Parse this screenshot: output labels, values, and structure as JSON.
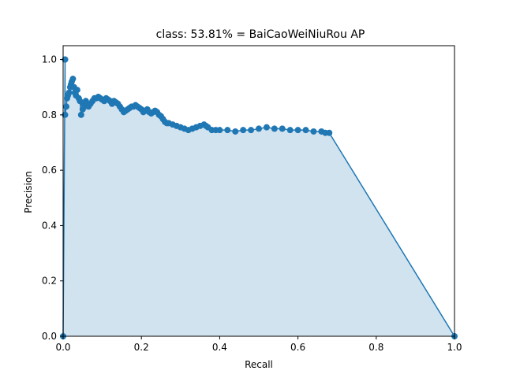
{
  "chart_data": {
    "type": "area",
    "title": "class: 53.81% = BaiCaoWeiNiuRou AP",
    "xlabel": "Recall",
    "ylabel": "Precision",
    "xlim": [
      0,
      1
    ],
    "ylim": [
      0,
      1.05
    ],
    "xticks": [
      "0.0",
      "0.2",
      "0.4",
      "0.6",
      "0.8",
      "1.0"
    ],
    "yticks": [
      "0.0",
      "0.2",
      "0.4",
      "0.6",
      "0.8",
      "1.0"
    ],
    "line_color": "#1f77b4",
    "fill_color": "#d2e3f0",
    "series": [
      {
        "x": [
          0.0,
          0.005,
          0.005,
          0.005,
          0.008,
          0.01,
          0.012,
          0.015,
          0.018,
          0.02,
          0.022,
          0.025,
          0.028,
          0.03,
          0.033,
          0.036,
          0.04,
          0.043,
          0.046,
          0.05,
          0.052,
          0.055,
          0.058,
          0.06,
          0.065,
          0.07,
          0.075,
          0.08,
          0.085,
          0.09,
          0.095,
          0.1,
          0.105,
          0.11,
          0.115,
          0.12,
          0.125,
          0.13,
          0.135,
          0.14,
          0.145,
          0.15,
          0.155,
          0.16,
          0.165,
          0.17,
          0.175,
          0.18,
          0.185,
          0.19,
          0.195,
          0.2,
          0.205,
          0.21,
          0.215,
          0.22,
          0.225,
          0.23,
          0.235,
          0.24,
          0.245,
          0.25,
          0.255,
          0.26,
          0.265,
          0.27,
          0.28,
          0.29,
          0.3,
          0.31,
          0.32,
          0.33,
          0.34,
          0.35,
          0.36,
          0.365,
          0.37,
          0.38,
          0.39,
          0.4,
          0.42,
          0.44,
          0.46,
          0.48,
          0.5,
          0.52,
          0.54,
          0.56,
          0.58,
          0.6,
          0.62,
          0.64,
          0.66,
          0.67,
          0.68,
          1.0
        ],
        "y": [
          0.0,
          1.0,
          1.0,
          0.8,
          0.83,
          0.86,
          0.87,
          0.88,
          0.9,
          0.91,
          0.92,
          0.93,
          0.9,
          0.88,
          0.87,
          0.89,
          0.86,
          0.85,
          0.8,
          0.82,
          0.84,
          0.83,
          0.85,
          0.84,
          0.83,
          0.84,
          0.85,
          0.86,
          0.86,
          0.865,
          0.86,
          0.855,
          0.85,
          0.86,
          0.855,
          0.85,
          0.84,
          0.85,
          0.845,
          0.84,
          0.83,
          0.82,
          0.81,
          0.815,
          0.82,
          0.825,
          0.83,
          0.83,
          0.835,
          0.83,
          0.825,
          0.82,
          0.81,
          0.815,
          0.82,
          0.81,
          0.805,
          0.81,
          0.815,
          0.81,
          0.8,
          0.795,
          0.785,
          0.775,
          0.77,
          0.77,
          0.765,
          0.76,
          0.755,
          0.75,
          0.745,
          0.75,
          0.755,
          0.76,
          0.765,
          0.76,
          0.755,
          0.745,
          0.745,
          0.745,
          0.745,
          0.74,
          0.745,
          0.745,
          0.75,
          0.755,
          0.75,
          0.75,
          0.745,
          0.745,
          0.745,
          0.74,
          0.74,
          0.735,
          0.735,
          0.0
        ]
      }
    ],
    "grid": false,
    "legend": false
  }
}
